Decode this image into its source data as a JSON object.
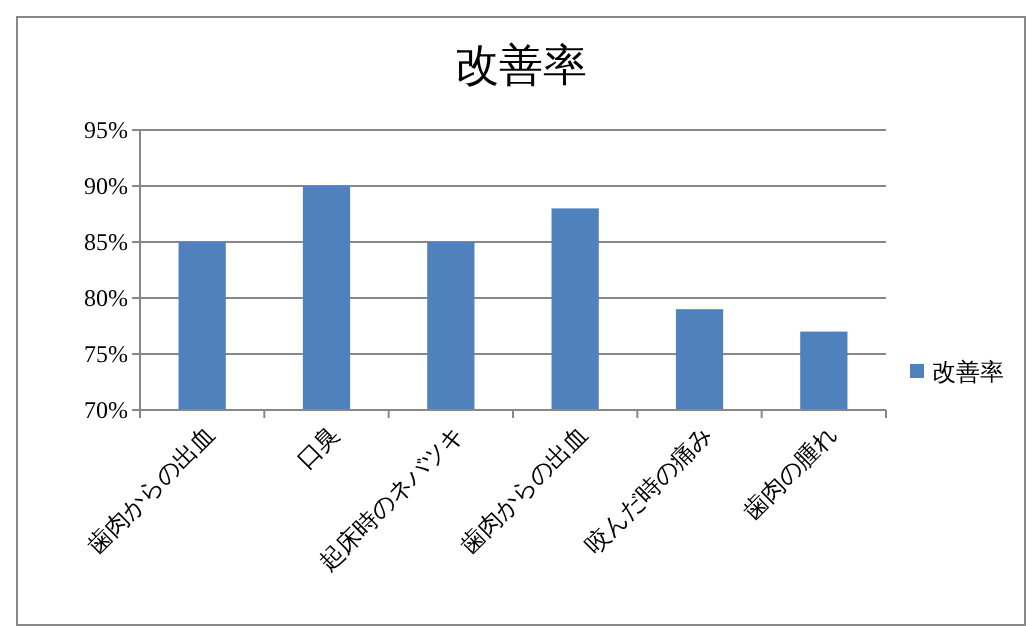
{
  "chart_data": {
    "type": "bar",
    "title": "改善率",
    "categories": [
      "歯肉からの出血",
      "口臭",
      "起床時のネバツキ",
      "歯肉からの出血",
      "咬んだ時の痛み",
      "歯肉の腫れ"
    ],
    "series": [
      {
        "name": "改善率",
        "color": "#4f81bd",
        "values": [
          85,
          90,
          85,
          88,
          79,
          77
        ]
      }
    ],
    "ylim": [
      70,
      95
    ],
    "yticks": [
      {
        "value": 70,
        "label": "70%"
      },
      {
        "value": 75,
        "label": "75%"
      },
      {
        "value": 80,
        "label": "80%"
      },
      {
        "value": 85,
        "label": "85%"
      },
      {
        "value": 90,
        "label": "90%"
      },
      {
        "value": 95,
        "label": "95%"
      }
    ],
    "grid": "y",
    "legend": "right"
  }
}
